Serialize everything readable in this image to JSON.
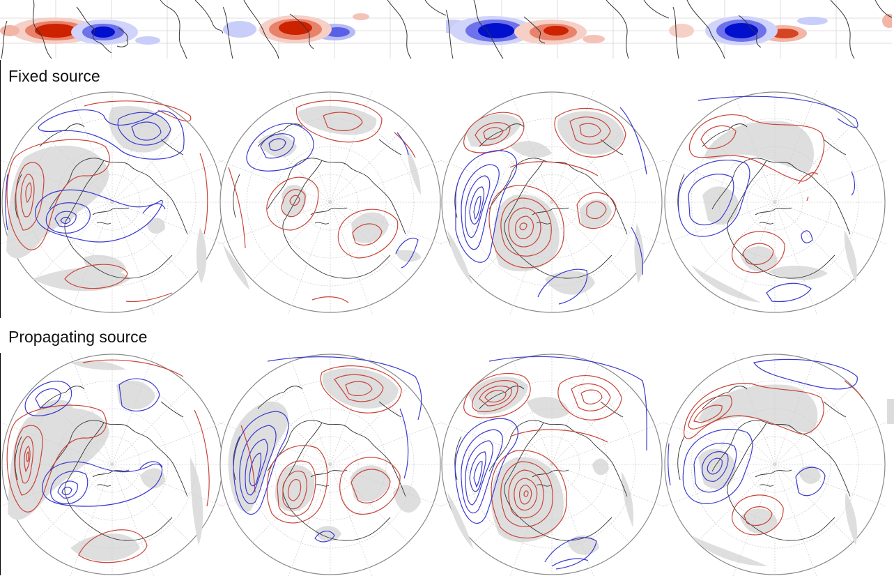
{
  "sections": {
    "fixed": {
      "label": "Fixed source"
    },
    "propagating": {
      "label": "Propagating source"
    }
  },
  "colors": {
    "positive_contour": "#c8453a",
    "negative_contour": "#3a3ad0",
    "significance_shading": "#dedede",
    "coastline": "#333333",
    "grid": "#c8c8c8",
    "heating_positive": "#cc2200",
    "heating_negative": "#0010cc"
  },
  "panels": {
    "heating_strips": [
      {
        "index": 1,
        "west_anomaly": "positive",
        "east_anomaly": "negative"
      },
      {
        "index": 2,
        "west_anomaly": "positive",
        "east_anomaly": "negative"
      },
      {
        "index": 3,
        "west_anomaly": "negative",
        "east_anomaly": "positive"
      },
      {
        "index": 4,
        "west_anomaly": "negative",
        "east_anomaly": "positive"
      }
    ],
    "fixed_globes": [
      1,
      2,
      3,
      4
    ],
    "propagating_globes": [
      1,
      2,
      3,
      4
    ]
  }
}
